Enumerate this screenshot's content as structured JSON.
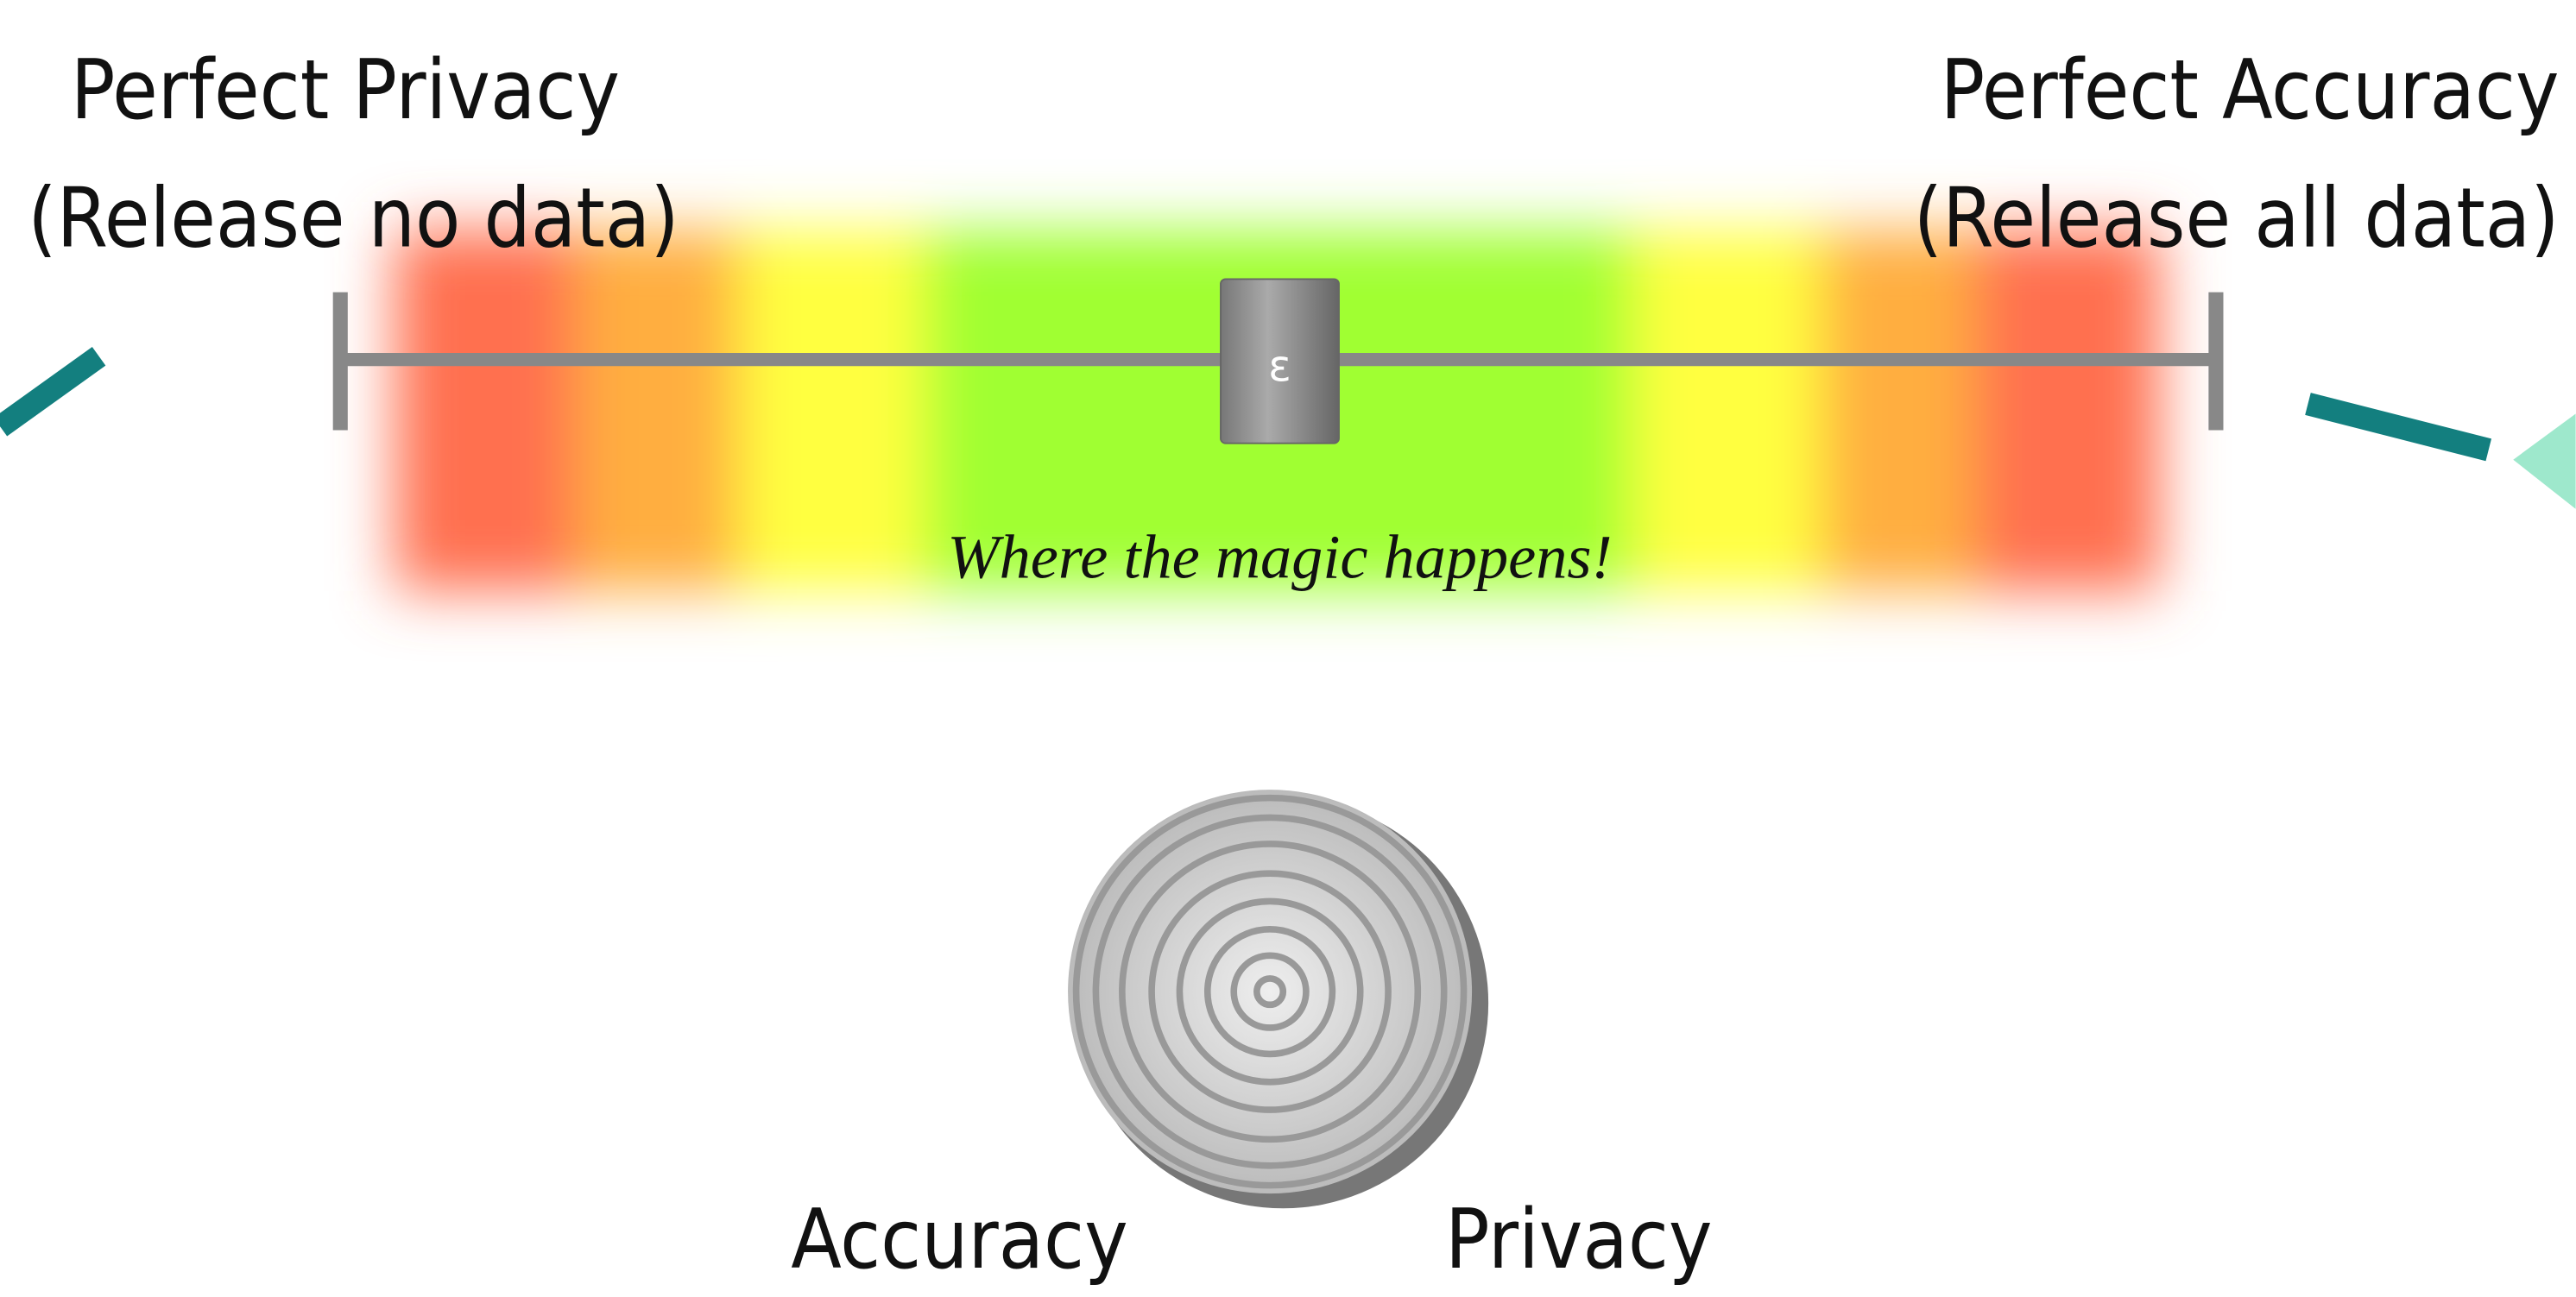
{
  "left_label": {
    "lines": [
      "Perfect Privacy",
      "(Release no data)"
    ]
  },
  "right_label": {
    "lines": [
      "Perfect Accuracy",
      "(Release all data)"
    ]
  },
  "slider": {
    "knob_label": "ε"
  },
  "caption": "Where the magic happens!",
  "dial": {
    "left_label": "Accuracy",
    "right_label": "Privacy"
  }
}
